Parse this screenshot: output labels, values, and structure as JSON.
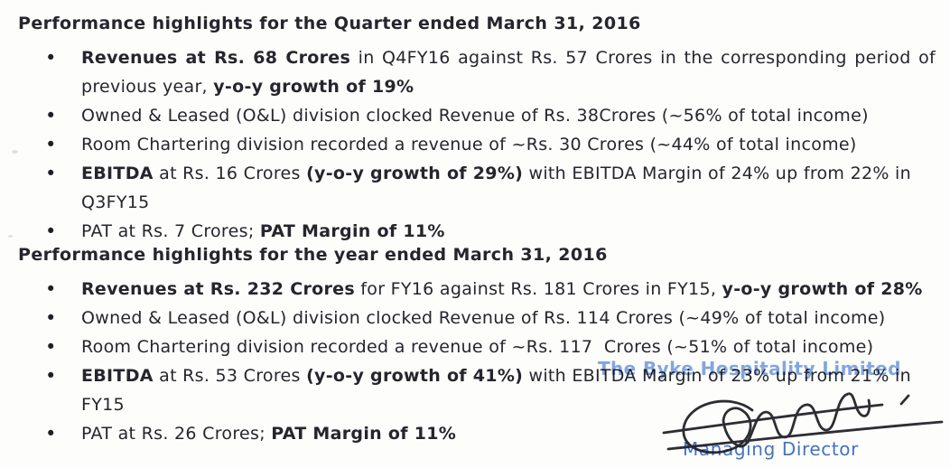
{
  "page": {
    "background": "#fdfdfb",
    "text_color": "#25252d",
    "bullet_glyph": "•"
  },
  "sections": [
    {
      "heading": "Performance highlights for the Quarter ended March 31, 2016",
      "bullets": [
        {
          "justify_first_line": true,
          "lines": [
            [
              {
                "text": "Revenues at Rs. 68 Crores",
                "bold": true
              },
              {
                "text": " in Q4FY16 against Rs. 57 Crores in the corresponding period of",
                "bold": false
              }
            ],
            [
              {
                "text": "previous year, ",
                "bold": false
              },
              {
                "text": "y-o-y growth of 19%",
                "bold": true
              }
            ]
          ]
        },
        {
          "lines": [
            [
              {
                "text": "Owned & Leased (O&L) division clocked Revenue of Rs. 38Crores (~56% of total income)",
                "bold": false
              }
            ]
          ]
        },
        {
          "lines": [
            [
              {
                "text": "Room Chartering division recorded a revenue of ~Rs. 30 Crores (~44% of total income)",
                "bold": false
              }
            ]
          ]
        },
        {
          "lines": [
            [
              {
                "text": "EBITDA",
                "bold": true
              },
              {
                "text": " at Rs. 16 Crores ",
                "bold": false
              },
              {
                "text": "(y-o-y growth of 29%)",
                "bold": true
              },
              {
                "text": " with EBITDA Margin of 24% up from 22% in Q3FY15",
                "bold": false
              }
            ]
          ]
        },
        {
          "lines": [
            [
              {
                "text": "PAT at Rs. 7 Crores; ",
                "bold": false
              },
              {
                "text": "PAT Margin of 11%",
                "bold": true
              }
            ]
          ]
        }
      ]
    },
    {
      "heading": "Performance highlights for the year ended March 31, 2016",
      "bullets": [
        {
          "lines": [
            [
              {
                "text": "Revenues at Rs. 232 Crores",
                "bold": true
              },
              {
                "text": " for FY16 against Rs. 181 Crores in FY15, ",
                "bold": false
              },
              {
                "text": "y-o-y growth of 28%",
                "bold": true
              }
            ]
          ]
        },
        {
          "lines": [
            [
              {
                "text": "Owned & Leased (O&L) division clocked Revenue of Rs. 114 Crores (~49% of total income)",
                "bold": false
              }
            ]
          ]
        },
        {
          "lines": [
            [
              {
                "text": "Room Chartering division recorded a revenue of ~Rs. 117  Crores (~51% of total income)",
                "bold": false
              }
            ]
          ]
        },
        {
          "lines": [
            [
              {
                "text": "EBITDA",
                "bold": true
              },
              {
                "text": " at Rs. 53 Crores ",
                "bold": false
              },
              {
                "text": "(y-o-y growth of 41%)",
                "bold": true
              },
              {
                "text": " with EBITDA Margin of 23% up from 21% in FY15",
                "bold": false
              }
            ]
          ]
        },
        {
          "lines": [
            [
              {
                "text": "PAT at Rs. 26 Crores; ",
                "bold": false
              },
              {
                "text": "PAT Margin of 11%",
                "bold": true
              }
            ]
          ]
        }
      ]
    }
  ],
  "signature_block": {
    "stamp_text": "The Byke Hospitality Limited",
    "title": "Managing Director",
    "stamp_color": "#6793dc",
    "title_color": "#4273c8",
    "ink_color": "#1c1c23"
  }
}
